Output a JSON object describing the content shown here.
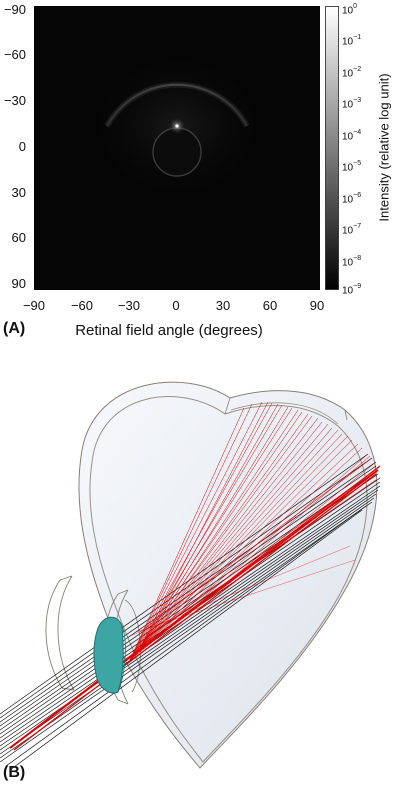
{
  "figure": {
    "panel_a_label": "(A)",
    "panel_b_label": "(B)"
  },
  "panel_a": {
    "xlabel": "Retinal field angle (degrees)",
    "x_ticks": [
      "−90",
      "−60",
      "−30",
      "0",
      "30",
      "60",
      "90"
    ],
    "y_ticks": [
      "−90",
      "−60",
      "−30",
      "0",
      "30",
      "60",
      "90"
    ],
    "colorbar": {
      "label": "Intensity (relative log unit)",
      "ticks": [
        {
          "base": "10",
          "exp": "0"
        },
        {
          "base": "10",
          "exp": "−1"
        },
        {
          "base": "10",
          "exp": "−2"
        },
        {
          "base": "10",
          "exp": "−3"
        },
        {
          "base": "10",
          "exp": "−4"
        },
        {
          "base": "10",
          "exp": "−5"
        },
        {
          "base": "10",
          "exp": "−6"
        },
        {
          "base": "10",
          "exp": "−7"
        },
        {
          "base": "10",
          "exp": "−8"
        },
        {
          "base": "10",
          "exp": "−9"
        }
      ],
      "colormap": "gray"
    }
  },
  "chart_data": {
    "type": "heatmap",
    "xlabel": "Retinal field angle (degrees)",
    "ylabel": "",
    "xlim": [
      -90,
      90
    ],
    "ylim": [
      90,
      -90
    ],
    "x_ticks": [
      -90,
      -60,
      -30,
      0,
      30,
      60,
      90
    ],
    "y_ticks": [
      -90,
      -60,
      -30,
      0,
      30,
      60,
      90
    ],
    "colorbar_label": "Intensity (relative log unit)",
    "colorbar_range": [
      1e-09,
      1
    ],
    "colorbar_scale": "log",
    "features": [
      {
        "kind": "point",
        "x": 0,
        "y": -15,
        "intensity": "brightest"
      },
      {
        "kind": "arc",
        "center_x": 0,
        "center_y": 5,
        "radius_deg": 50,
        "from_deg": -60,
        "to_deg": 60
      },
      {
        "kind": "circle",
        "center_x": 0,
        "center_y": 0,
        "radius_deg": 15
      }
    ]
  },
  "colors": {
    "background": "#ffffff",
    "plot_bg": "#050505",
    "ray_red": "#e10000",
    "ray_black": "#151515",
    "lens": "#3ea5a5",
    "heart_stroke": "#7a6f66",
    "heart_fill": "#eef1f6"
  }
}
